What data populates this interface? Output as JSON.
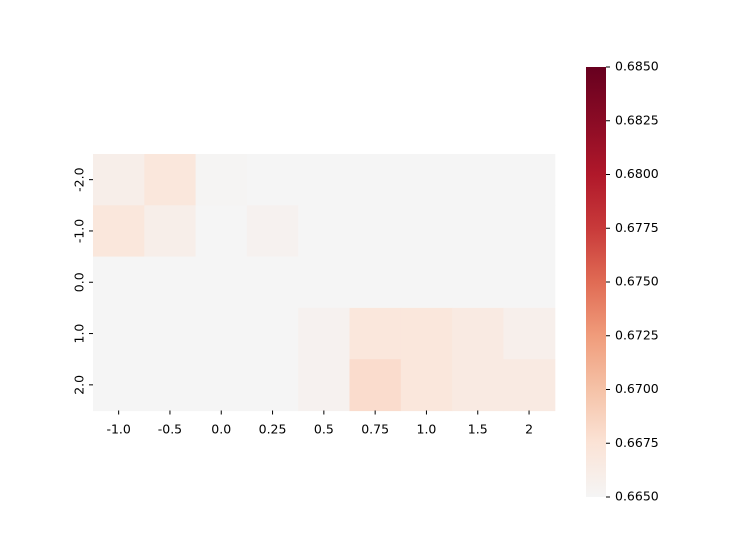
{
  "chart_data": {
    "type": "heatmap",
    "title": "",
    "xlabel": "",
    "ylabel": "",
    "x_categories": [
      "-1.0",
      "-0.5",
      "0.0",
      "0.25",
      "0.5",
      "0.75",
      "1.0",
      "1.5",
      "2"
    ],
    "y_categories": [
      "-2.0",
      "-1.0",
      "0.0",
      "1.0",
      "2.0"
    ],
    "values": [
      [
        0.666,
        0.667,
        0.6652,
        0.665,
        0.665,
        0.665,
        0.665,
        0.665,
        0.665
      ],
      [
        0.667,
        0.666,
        0.665,
        0.6655,
        0.665,
        0.665,
        0.665,
        0.665,
        0.665
      ],
      [
        0.665,
        0.665,
        0.665,
        0.665,
        0.665,
        0.665,
        0.665,
        0.665,
        0.665
      ],
      [
        0.665,
        0.665,
        0.665,
        0.665,
        0.6655,
        0.667,
        0.667,
        0.6665,
        0.6658
      ],
      [
        0.665,
        0.665,
        0.665,
        0.665,
        0.6655,
        0.668,
        0.667,
        0.6665,
        0.6665
      ]
    ],
    "colorscale": {
      "name": "RdBu_r (upper half)",
      "min": 0.665,
      "max": 0.685,
      "ticks": [
        "0.6650",
        "0.6675",
        "0.6700",
        "0.6725",
        "0.6750",
        "0.6775",
        "0.6800",
        "0.6825",
        "0.6850"
      ],
      "stops": [
        "#f5f5f5",
        "#fbe3d6",
        "#f5c2a7",
        "#f09c7b",
        "#e06b54",
        "#c83a3a",
        "#b0182a",
        "#8a0b25",
        "#67001f"
      ]
    },
    "grid": false,
    "legend": "colorbar-right"
  }
}
